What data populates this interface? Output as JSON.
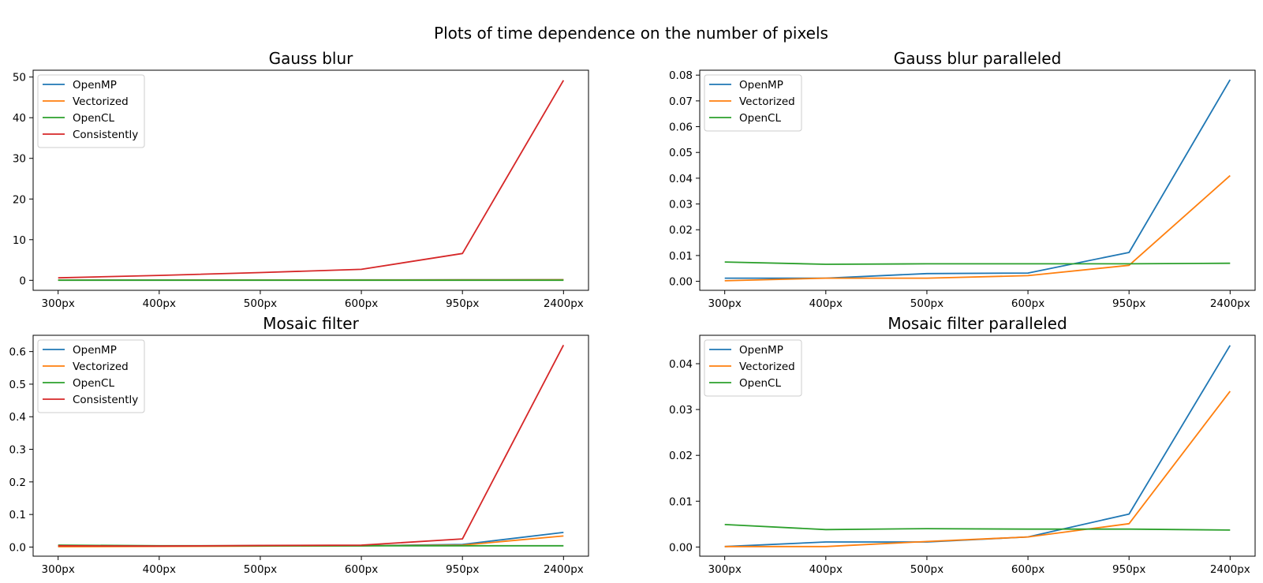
{
  "figure": {
    "suptitle": "Plots of time dependence on the number of pixels"
  },
  "chart_data": [
    {
      "type": "line",
      "title": "Gauss blur",
      "categories": [
        "300px",
        "400px",
        "500px",
        "600px",
        "950px",
        "2400px"
      ],
      "ylim": [
        -2.46,
        51.68
      ],
      "yticks": [
        0,
        10,
        20,
        30,
        40,
        50
      ],
      "yticklabels": [
        "0",
        "10",
        "20",
        "30",
        "40",
        "50"
      ],
      "legend": "upper left",
      "series": [
        {
          "name": "OpenMP",
          "color": "#1f77b4",
          "values": [
            0.05,
            0.06,
            0.08,
            0.1,
            0.12,
            0.15
          ]
        },
        {
          "name": "Vectorized",
          "color": "#ff7f0e",
          "values": [
            0.04,
            0.05,
            0.07,
            0.09,
            0.11,
            0.14
          ]
        },
        {
          "name": "OpenCL",
          "color": "#2ca02c",
          "values": [
            0.02,
            0.02,
            0.02,
            0.02,
            0.02,
            0.02
          ]
        },
        {
          "name": "Consistently",
          "color": "#d62728",
          "values": [
            0.6,
            1.2,
            1.9,
            2.7,
            6.6,
            49.2
          ]
        }
      ]
    },
    {
      "type": "line",
      "title": "Gauss blur paralleled",
      "categories": [
        "300px",
        "400px",
        "500px",
        "600px",
        "950px",
        "2400px"
      ],
      "ylim": [
        -0.0035,
        0.0819
      ],
      "yticks": [
        0,
        0.01,
        0.02,
        0.03,
        0.04,
        0.05,
        0.06,
        0.07,
        0.08
      ],
      "yticklabels": [
        "0.00",
        "0.01",
        "0.02",
        "0.03",
        "0.04",
        "0.05",
        "0.06",
        "0.07",
        "0.08"
      ],
      "legend": "upper left",
      "series": [
        {
          "name": "OpenMP",
          "color": "#1f77b4",
          "values": [
            0.0012,
            0.0012,
            0.003,
            0.0032,
            0.0112,
            0.0782
          ]
        },
        {
          "name": "Vectorized",
          "color": "#ff7f0e",
          "values": [
            0.0002,
            0.0012,
            0.0012,
            0.0022,
            0.0062,
            0.041
          ]
        },
        {
          "name": "OpenCL",
          "color": "#2ca02c",
          "values": [
            0.0075,
            0.0066,
            0.0068,
            0.0068,
            0.0068,
            0.007
          ]
        }
      ]
    },
    {
      "type": "line",
      "title": "Mosaic filter",
      "categories": [
        "300px",
        "400px",
        "500px",
        "600px",
        "950px",
        "2400px"
      ],
      "ylim": [
        -0.028,
        0.65
      ],
      "yticks": [
        0,
        0.1,
        0.2,
        0.3,
        0.4,
        0.5,
        0.6
      ],
      "yticklabels": [
        "0.0",
        "0.1",
        "0.2",
        "0.3",
        "0.4",
        "0.5",
        "0.6"
      ],
      "legend": "upper left",
      "series": [
        {
          "name": "OpenMP",
          "color": "#1f77b4",
          "values": [
            0.002,
            0.003,
            0.004,
            0.004,
            0.008,
            0.045
          ]
        },
        {
          "name": "Vectorized",
          "color": "#ff7f0e",
          "values": [
            0.001,
            0.002,
            0.003,
            0.004,
            0.006,
            0.034
          ]
        },
        {
          "name": "OpenCL",
          "color": "#2ca02c",
          "values": [
            0.006,
            0.004,
            0.004,
            0.004,
            0.004,
            0.004
          ]
        },
        {
          "name": "Consistently",
          "color": "#d62728",
          "values": [
            0.004,
            0.003,
            0.005,
            0.006,
            0.025,
            0.62
          ]
        }
      ]
    },
    {
      "type": "line",
      "title": "Mosaic filter paralleled",
      "categories": [
        "300px",
        "400px",
        "500px",
        "600px",
        "950px",
        "2400px"
      ],
      "ylim": [
        -0.002,
        0.0462
      ],
      "yticks": [
        0,
        0.01,
        0.02,
        0.03,
        0.04
      ],
      "yticklabels": [
        "0.00",
        "0.01",
        "0.02",
        "0.03",
        "0.04"
      ],
      "legend": "upper left",
      "series": [
        {
          "name": "OpenMP",
          "color": "#1f77b4",
          "values": [
            0.0001,
            0.0011,
            0.0011,
            0.0022,
            0.0072,
            0.044
          ]
        },
        {
          "name": "Vectorized",
          "color": "#ff7f0e",
          "values": [
            0.0001,
            0.0001,
            0.0012,
            0.0022,
            0.0051,
            0.034
          ]
        },
        {
          "name": "OpenCL",
          "color": "#2ca02c",
          "values": [
            0.0049,
            0.0038,
            0.004,
            0.0039,
            0.0039,
            0.0037
          ]
        }
      ]
    }
  ]
}
